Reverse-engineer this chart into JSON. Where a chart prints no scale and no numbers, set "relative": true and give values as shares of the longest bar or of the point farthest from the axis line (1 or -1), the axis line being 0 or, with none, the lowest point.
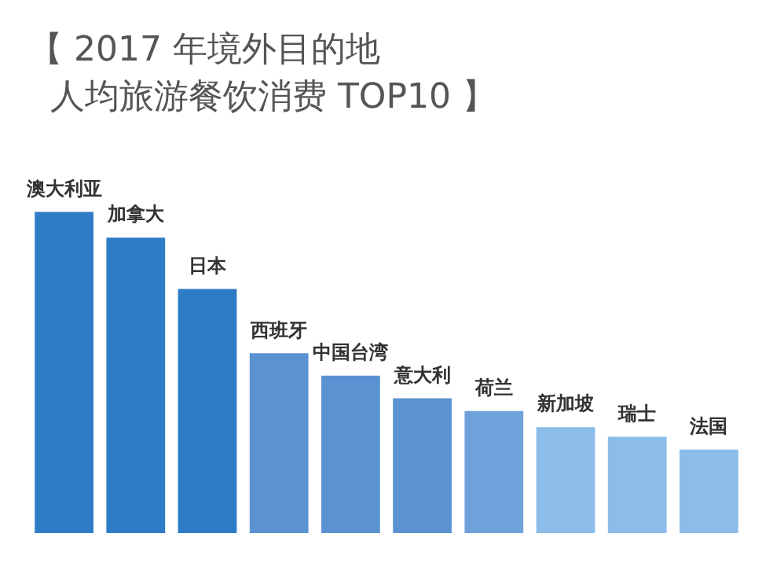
{
  "chart_data": {
    "type": "bar",
    "title": "【 2017 年境外目的地人均旅游餐饮消费 TOP10 】",
    "relative": true,
    "categories": [
      "澳大利亚",
      "加拿大",
      "日本",
      "西班牙",
      "中国台湾",
      "意大利",
      "荷兰",
      "新加坡",
      "瑞士",
      "法国"
    ],
    "values": [
      1,
      0.92,
      0.76,
      0.56,
      0.49,
      0.42,
      0.38,
      0.33,
      0.3,
      0.26
    ],
    "colors": [
      "#2e7cc6",
      "#2e7cc6",
      "#2e7cc6",
      "#5b93d2",
      "#5b93d2",
      "#5b93d2",
      "#6fa2da",
      "#8bbde8",
      "#8bbde8",
      "#8bbde8"
    ],
    "legend": false
  }
}
